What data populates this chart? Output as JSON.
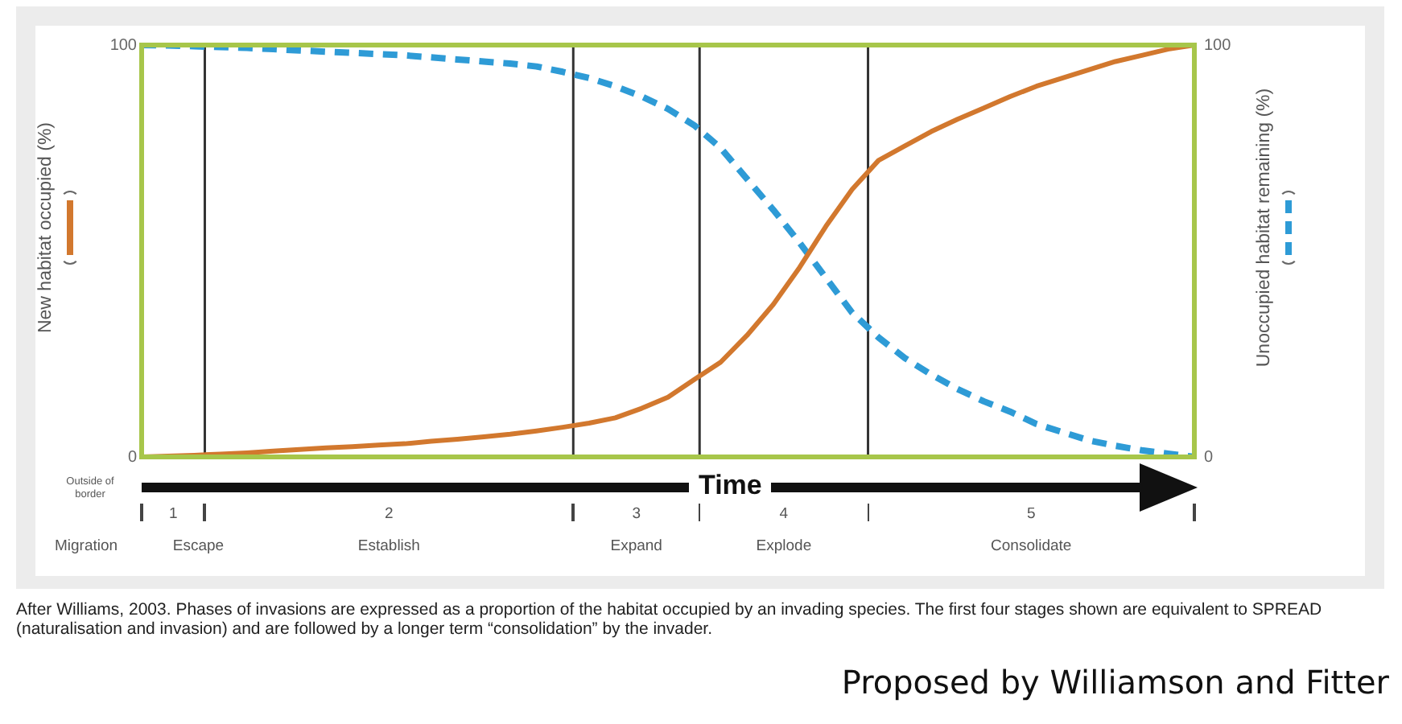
{
  "chart_data": {
    "type": "line",
    "xlabel": "Time",
    "ylabel": "New habitat occupied (%)",
    "y2label": "Unoccupied habitat remaining (%)",
    "categories": [
      null,
      null,
      null,
      null,
      null,
      null,
      null,
      null,
      null,
      null,
      null,
      null,
      null,
      null,
      null,
      null,
      null,
      null,
      null,
      null,
      null,
      null,
      null,
      null,
      null,
      null,
      null,
      null,
      null,
      null,
      null,
      null,
      null,
      null,
      null,
      null,
      null,
      null,
      null,
      null,
      null
    ],
    "ylim": [
      0,
      100
    ],
    "yticks": [
      0,
      100
    ],
    "y2lim": [
      0,
      100
    ],
    "y2ticks": [
      0,
      100
    ],
    "legend": false,
    "marker": "none",
    "series": [
      {
        "color": "#d2782e",
        "line_style": "solid",
        "values": [
          0,
          0.2,
          0.4,
          0.7,
          1.0,
          1.4,
          1.8,
          2.2,
          2.5,
          2.9,
          3.2,
          3.8,
          4.3,
          4.9,
          5.5,
          6.3,
          7.2,
          8.2,
          9.5,
          11.8,
          14.5,
          18.8,
          23,
          29.5,
          37,
          46,
          56,
          65,
          72,
          75.5,
          79,
          82,
          84.7,
          87.5,
          90,
          92,
          94,
          96,
          97.5,
          99,
          100
        ]
      },
      {
        "color": "#2e9bd6",
        "line_style": "dashed",
        "axis": "y2",
        "values": [
          100,
          99.9,
          99.7,
          99.5,
          99.3,
          99,
          98.7,
          98.4,
          98.1,
          97.8,
          97.5,
          97,
          96.5,
          96,
          95.5,
          94.8,
          93.5,
          92,
          90,
          87.5,
          84.5,
          80.5,
          75,
          67.5,
          60,
          52,
          43.5,
          35,
          29,
          24,
          20,
          16.5,
          13.5,
          11,
          8,
          6,
          4,
          2.7,
          1.6,
          0.8,
          0
        ]
      }
    ],
    "annotations": [
      "Outside of border",
      "Migration",
      "1",
      "Escape",
      "2",
      "Establish",
      "3",
      "Expand",
      "4",
      "Explode",
      "5",
      "Consolidate",
      "After Williams, 2003. Phases of invasions are expressed as a proportion of the habitat occupied by an invading species. The first four stages shown are equivalent to SPREAD (naturalisation and invasion) and are followed by a longer term “consolidation” by the invader.",
      "Proposed by Williamson and Fitter"
    ]
  }
}
